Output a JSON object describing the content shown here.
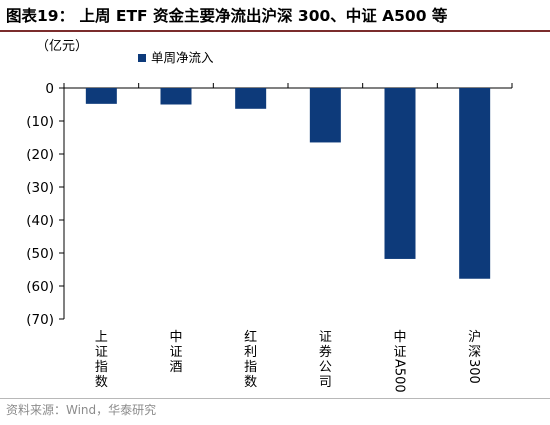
{
  "figure": {
    "title": "图表19：  上周 ETF 资金主要净流出沪深 300、中证 A500 等",
    "unit": "（亿元）",
    "source": "资料来源：Wind，华泰研究"
  },
  "colors": {
    "bar": "#0d3a7a",
    "axis": "#000000",
    "title_rule": "#7b2c2c"
  },
  "chart_data": {
    "type": "bar",
    "title": "图表19：  上周 ETF 资金主要净流出沪深 300、中证 A500 等",
    "ylabel": "（亿元）",
    "xlabel": "",
    "categories": [
      "上证指数",
      "中证酒",
      "红利指数",
      "证券公司",
      "中证A500",
      "沪深300"
    ],
    "series": [
      {
        "name": "单周净流入",
        "values": [
          -4.8,
          -5.0,
          -6.3,
          -16.5,
          -51.8,
          -57.8
        ]
      }
    ],
    "ylim": [
      -70,
      0
    ],
    "yticks": [
      0,
      -10,
      -20,
      -30,
      -40,
      -50,
      -60,
      -70
    ],
    "ytick_labels": [
      "0",
      "(10)",
      "(20)",
      "(30)",
      "(40)",
      "(50)",
      "(60)",
      "(70)"
    ],
    "grid": false,
    "legend": "top-left"
  }
}
